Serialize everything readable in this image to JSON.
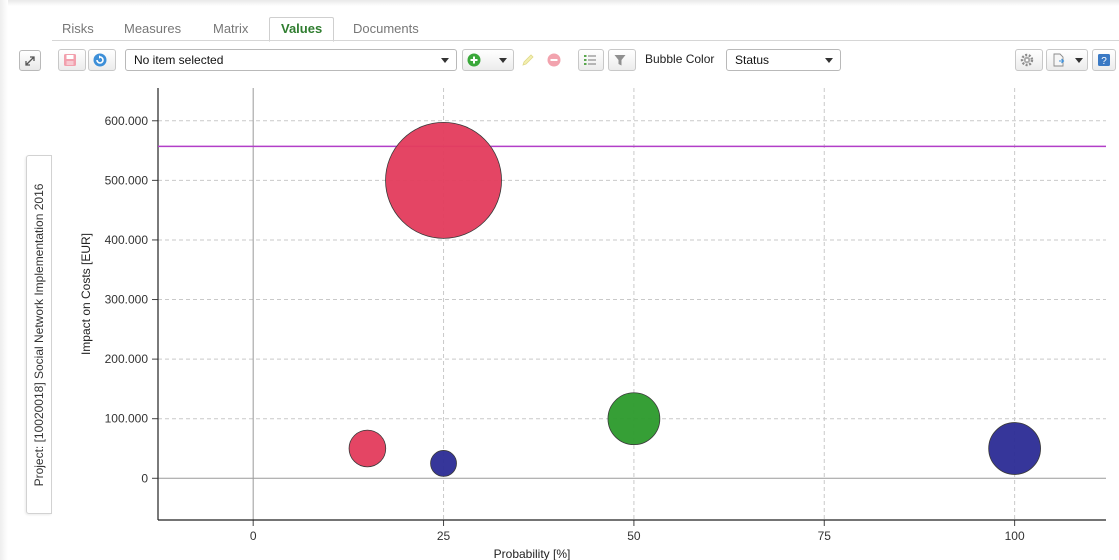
{
  "tabs": [
    {
      "label": "Risks",
      "active": false
    },
    {
      "label": "Measures",
      "active": false
    },
    {
      "label": "Matrix",
      "active": false
    },
    {
      "label": "Values",
      "active": true
    },
    {
      "label": "Documents",
      "active": false
    }
  ],
  "side_panel": {
    "label": "Project: [10020018] Social Network Implementation 2016"
  },
  "toolbar": {
    "item_select": "No item selected",
    "bubble_color_label": "Bubble Color",
    "bubble_color_value": "Status"
  },
  "colors": {
    "accent_green": "#2f7d2f",
    "red": "#e33d5e",
    "green": "#2e9b2e",
    "blue": "#2e2e96",
    "threshold_line": "#b23ec8"
  },
  "chart_data": {
    "type": "scatter",
    "xlabel": "Probability [%]",
    "ylabel": "Impact on Costs [EUR]",
    "x_ticks": [
      0,
      25,
      50,
      75,
      100
    ],
    "y_ticks": [
      0,
      100000,
      200000,
      300000,
      400000,
      500000,
      600000
    ],
    "y_tick_labels": [
      "0",
      "100.000",
      "200.000",
      "300.000",
      "400.000",
      "500.000",
      "600.000"
    ],
    "xlim": [
      -12.5,
      112
    ],
    "ylim": [
      -70000,
      655000
    ],
    "grid": true,
    "threshold_y": 557000,
    "bubbles": [
      {
        "x": 25,
        "y": 500000,
        "size": 500000,
        "color": "red"
      },
      {
        "x": 15,
        "y": 50000,
        "size": 50000,
        "color": "red"
      },
      {
        "x": 25,
        "y": 25000,
        "size": 25000,
        "color": "blue"
      },
      {
        "x": 50,
        "y": 100000,
        "size": 100000,
        "color": "green"
      },
      {
        "x": 100,
        "y": 50000,
        "size": 100000,
        "color": "blue"
      }
    ]
  }
}
